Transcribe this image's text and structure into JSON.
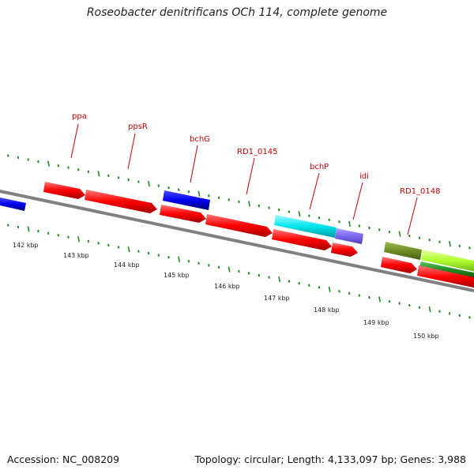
{
  "title": "Roseobacter denitrificans OCh 114, complete genome",
  "footer": {
    "accession": "Accession: NC_008209",
    "summary": "Topology: circular; Length: 4,133,097 bp; Genes: 3,988"
  },
  "gene_labels": [
    "ppa",
    "ppsR",
    "bchG",
    "RD1_0145",
    "bchP",
    "idi",
    "RD1_0148"
  ],
  "kbp_labels": [
    "142 kbp",
    "143 kbp",
    "144 kbp",
    "145 kbp",
    "146 kbp",
    "147 kbp",
    "148 kbp",
    "149 kbp",
    "150 kbp"
  ],
  "colors": {
    "cds_red": "#ff0000",
    "blue": "#0000ee",
    "cyan": "#00e5ee",
    "slate_blue": "#7b68ee",
    "olive": "#6b8e23",
    "yellow_green": "#adff2f",
    "green": "#228b22",
    "backbone": "#808080",
    "ticks": "#228b22"
  }
}
